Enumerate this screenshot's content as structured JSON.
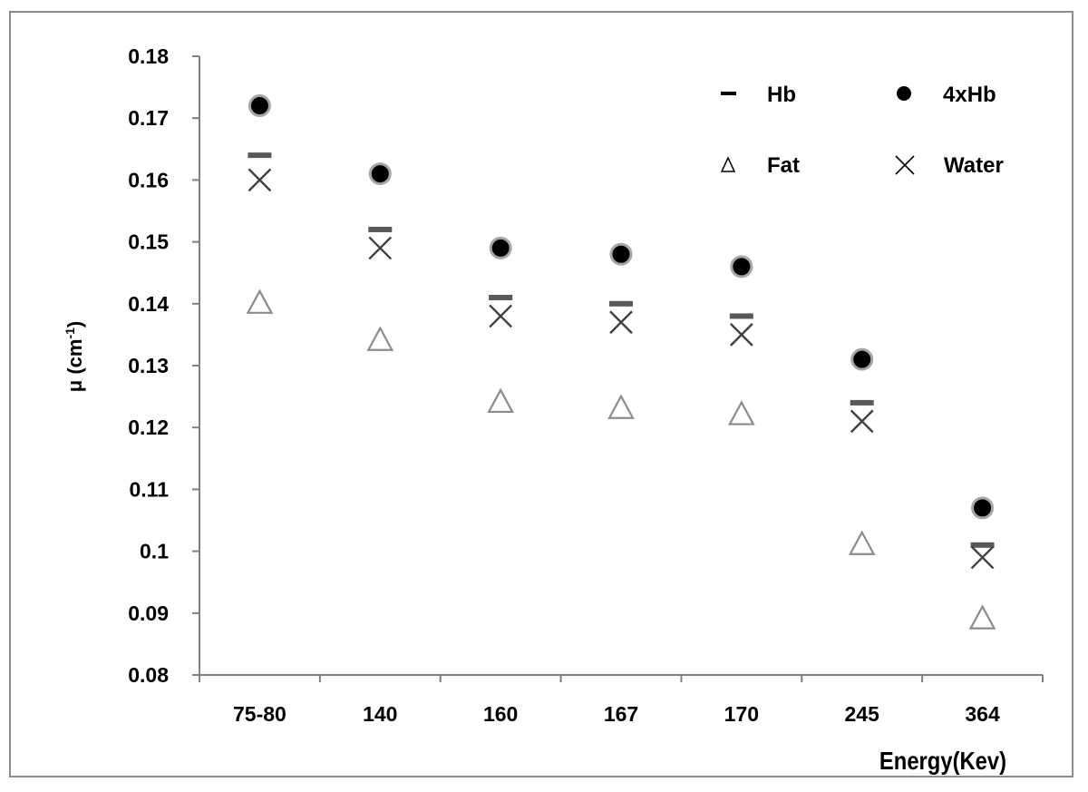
{
  "chart_data": {
    "type": "scatter",
    "categories": [
      "75-80",
      "140",
      "160",
      "167",
      "170",
      "245",
      "364"
    ],
    "xlabel": "Energy(Kev)",
    "ylabel": "μ (cm",
    "ylabel_sup": "-1",
    "ylabel_close": ")",
    "ylim": [
      0.08,
      0.18
    ],
    "yticks": [
      "0.08",
      "0.09",
      "0.1",
      "0.11",
      "0.12",
      "0.13",
      "0.14",
      "0.15",
      "0.16",
      "0.17",
      "0.18"
    ],
    "grid": false,
    "legend_position": "top-right",
    "series": [
      {
        "name": "Hb",
        "marker": "dash",
        "color": "#595959",
        "values": [
          0.164,
          0.152,
          0.141,
          0.14,
          0.138,
          0.124,
          0.101
        ]
      },
      {
        "name": "4xHb",
        "marker": "circle",
        "color": "#000000",
        "values": [
          0.172,
          0.161,
          0.149,
          0.148,
          0.146,
          0.131,
          0.107
        ]
      },
      {
        "name": "Fat",
        "marker": "triangle",
        "color": "#8c8c8c",
        "values": [
          0.14,
          0.134,
          0.124,
          0.123,
          0.122,
          0.101,
          0.089
        ]
      },
      {
        "name": "Water",
        "marker": "x",
        "color": "#404040",
        "values": [
          0.16,
          0.149,
          0.138,
          0.137,
          0.135,
          0.121,
          0.099
        ]
      }
    ]
  }
}
